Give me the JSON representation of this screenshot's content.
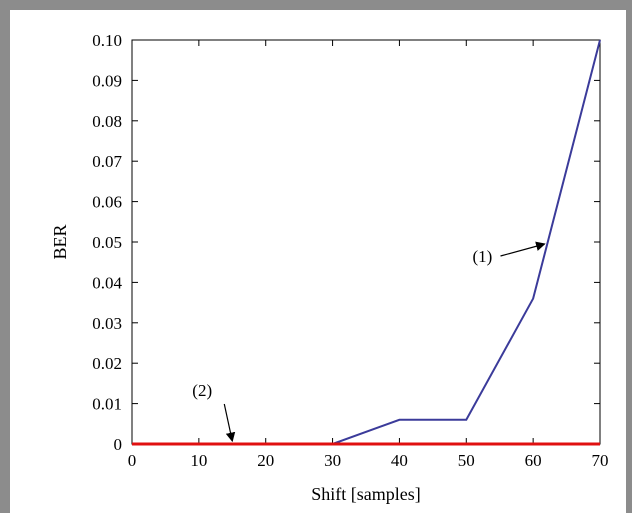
{
  "chart_data": {
    "type": "line",
    "xlabel": "Shift [samples]",
    "ylabel": "BER",
    "xlim": [
      0,
      70
    ],
    "ylim": [
      0,
      0.1
    ],
    "xticks": [
      "0",
      "10",
      "20",
      "30",
      "40",
      "50",
      "60",
      "70"
    ],
    "yticks": [
      "0",
      "0.01",
      "0.02",
      "0.03",
      "0.04",
      "0.05",
      "0.06",
      "0.07",
      "0.08",
      "0.09",
      "0.10"
    ],
    "grid": false,
    "series": [
      {
        "color": "#3b3b9a",
        "x": [
          0,
          30,
          40,
          50,
          60,
          70
        ],
        "y": [
          0,
          0,
          0.006,
          0.006,
          0.036,
          0.1
        ]
      },
      {
        "color": "#e01010",
        "x": [
          0,
          70
        ],
        "y": [
          0,
          0
        ]
      }
    ],
    "annotations": [
      {
        "text": "(1)",
        "x": 62,
        "y": 0.05
      },
      {
        "text": "(2)",
        "x": 15,
        "y": 0.0
      }
    ]
  }
}
